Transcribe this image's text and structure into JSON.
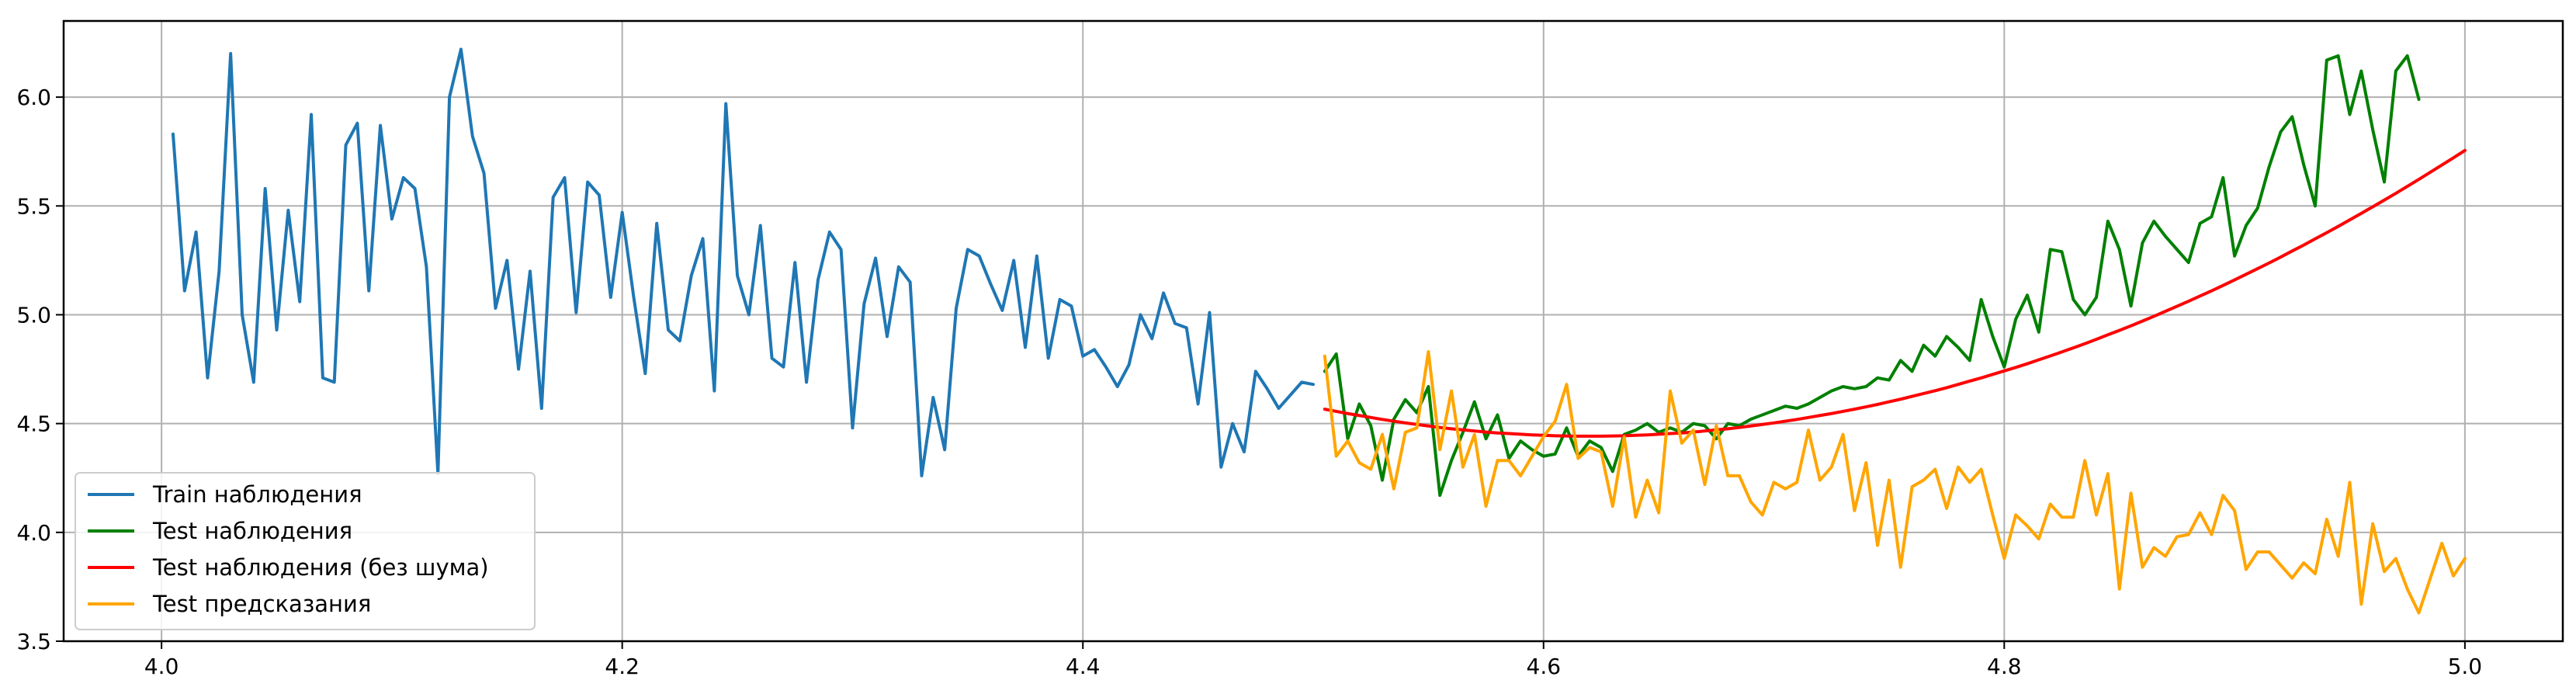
{
  "chart_data": {
    "type": "line",
    "title": "",
    "xlabel": "",
    "ylabel": "",
    "xlim": [
      3.9575,
      5.0425
    ],
    "ylim": [
      3.5,
      6.35
    ],
    "grid": true,
    "legend_position": "bottom-left",
    "x_ticks": [
      4.0,
      4.2,
      4.4,
      4.6,
      4.8,
      5.0
    ],
    "x_tick_labels": [
      "4.0",
      "4.2",
      "4.4",
      "4.6",
      "4.8",
      "5.0"
    ],
    "y_ticks": [
      3.5,
      4.0,
      4.5,
      5.0,
      5.5,
      6.0
    ],
    "y_tick_labels": [
      "3.5",
      "4.0",
      "4.5",
      "5.0",
      "5.5",
      "6.0"
    ],
    "series": [
      {
        "name": "Train наблюдения",
        "color": "#1f77b4",
        "x_start": 4.005,
        "x_step": 0.005,
        "values": [
          5.83,
          5.11,
          5.38,
          4.71,
          5.2,
          6.2,
          5.0,
          4.69,
          5.58,
          4.93,
          5.48,
          5.06,
          5.92,
          4.71,
          4.69,
          5.78,
          5.88,
          5.11,
          5.87,
          5.44,
          5.63,
          5.58,
          5.22,
          4.27,
          6.0,
          6.22,
          5.82,
          5.65,
          5.03,
          5.25,
          4.75,
          5.2,
          4.57,
          5.54,
          5.63,
          5.01,
          5.61,
          5.55,
          5.08,
          5.47,
          5.08,
          4.73,
          5.42,
          4.93,
          4.88,
          5.18,
          5.35,
          4.65,
          5.97,
          5.18,
          5.0,
          5.41,
          4.8,
          4.76,
          5.24,
          4.69,
          5.16,
          5.38,
          5.3,
          4.48,
          5.05,
          5.26,
          4.9,
          5.22,
          5.15,
          4.26,
          4.62,
          4.38,
          5.03,
          5.3,
          5.27,
          5.14,
          5.02,
          5.25,
          4.85,
          5.27,
          4.8,
          5.07,
          5.04,
          4.81,
          4.84,
          4.76,
          4.67,
          4.77,
          5.0,
          4.89,
          5.1,
          4.96,
          4.94,
          4.59,
          5.01,
          4.3,
          4.5,
          4.37,
          4.74,
          4.66,
          4.57,
          4.63,
          4.69,
          4.68
        ]
      },
      {
        "name": "Test наблюдения",
        "color": "#008000",
        "x_start": 4.505,
        "x_step": 0.005,
        "values": [
          4.74,
          4.82,
          4.43,
          4.59,
          4.49,
          4.24,
          4.52,
          4.61,
          4.55,
          4.67,
          4.17,
          4.33,
          4.46,
          4.6,
          4.43,
          4.54,
          4.34,
          4.42,
          4.38,
          4.35,
          4.36,
          4.48,
          4.35,
          4.42,
          4.39,
          4.28,
          4.45,
          4.47,
          4.5,
          4.46,
          4.48,
          4.46,
          4.5,
          4.49,
          4.43,
          4.5,
          4.49,
          4.52,
          4.54,
          4.56,
          4.58,
          4.57,
          4.59,
          4.62,
          4.65,
          4.67,
          4.66,
          4.67,
          4.71,
          4.7,
          4.79,
          4.74,
          4.86,
          4.81,
          4.9,
          4.85,
          4.79,
          5.07,
          4.9,
          4.76,
          4.98,
          5.09,
          4.92,
          5.3,
          5.29,
          5.07,
          5.0,
          5.08,
          5.43,
          5.3,
          5.04,
          5.33,
          5.43,
          5.36,
          5.3,
          5.24,
          5.42,
          5.45,
          5.63,
          5.27,
          5.41,
          5.49,
          5.68,
          5.84,
          5.91,
          5.69,
          5.5,
          6.17,
          6.19,
          5.92,
          6.12,
          5.85,
          5.61,
          6.12,
          6.19,
          5.99
        ]
      },
      {
        "name": "Test наблюдения (без шума)",
        "color": "#ff0000",
        "x_start": 4.505,
        "x_step": 0.005,
        "values": [
          4.566,
          4.556,
          4.546,
          4.537,
          4.528,
          4.519,
          4.511,
          4.503,
          4.496,
          4.489,
          4.482,
          4.476,
          4.471,
          4.466,
          4.461,
          4.457,
          4.454,
          4.451,
          4.448,
          4.446,
          4.444,
          4.443,
          4.442,
          4.442,
          4.442,
          4.443,
          4.444,
          4.446,
          4.448,
          4.451,
          4.454,
          4.457,
          4.461,
          4.466,
          4.471,
          4.476,
          4.482,
          4.489,
          4.496,
          4.503,
          4.511,
          4.519,
          4.528,
          4.537,
          4.546,
          4.556,
          4.566,
          4.577,
          4.588,
          4.6,
          4.612,
          4.625,
          4.638,
          4.651,
          4.665,
          4.68,
          4.695,
          4.71,
          4.726,
          4.742,
          4.758,
          4.775,
          4.793,
          4.811,
          4.829,
          4.848,
          4.867,
          4.887,
          4.908,
          4.928,
          4.949,
          4.971,
          4.993,
          5.016,
          5.039,
          5.062,
          5.086,
          5.11,
          5.135,
          5.16,
          5.186,
          5.212,
          5.238,
          5.265,
          5.293,
          5.32,
          5.349,
          5.377,
          5.406,
          5.436,
          5.466,
          5.496,
          5.527,
          5.558,
          5.59,
          5.622,
          5.655,
          5.688,
          5.721,
          5.755
        ]
      },
      {
        "name": "Test предсказания",
        "color": "#ffa500",
        "x_start": 4.505,
        "x_step": 0.005,
        "values": [
          4.81,
          4.35,
          4.42,
          4.32,
          4.29,
          4.45,
          4.2,
          4.46,
          4.48,
          4.83,
          4.38,
          4.65,
          4.3,
          4.45,
          4.12,
          4.33,
          4.33,
          4.26,
          4.35,
          4.44,
          4.51,
          4.68,
          4.34,
          4.39,
          4.37,
          4.12,
          4.44,
          4.07,
          4.24,
          4.09,
          4.65,
          4.41,
          4.47,
          4.22,
          4.49,
          4.26,
          4.26,
          4.14,
          4.08,
          4.23,
          4.2,
          4.23,
          4.47,
          4.24,
          4.3,
          4.45,
          4.1,
          4.32,
          3.94,
          4.24,
          3.84,
          4.21,
          4.24,
          4.29,
          4.11,
          4.3,
          4.23,
          4.29,
          4.08,
          3.88,
          4.08,
          4.03,
          3.97,
          4.13,
          4.07,
          4.07,
          4.33,
          4.08,
          4.27,
          3.74,
          4.18,
          3.84,
          3.93,
          3.89,
          3.98,
          3.99,
          4.09,
          3.99,
          4.17,
          4.1,
          3.83,
          3.91,
          3.91,
          3.85,
          3.79,
          3.86,
          3.81,
          4.06,
          3.89,
          4.23,
          3.67,
          4.04,
          3.82,
          3.88,
          3.74,
          3.63,
          3.79,
          3.95,
          3.8,
          3.88
        ]
      }
    ]
  }
}
